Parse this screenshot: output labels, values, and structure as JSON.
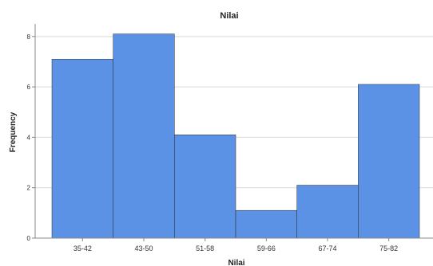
{
  "chart_data": {
    "type": "bar",
    "title": "Nilai",
    "xlabel": "Nilai",
    "ylabel": "Frequency",
    "categories": [
      "35-42",
      "43-50",
      "51-58",
      "59-66",
      "67-74",
      "75-82"
    ],
    "values": [
      7.1,
      8.1,
      4.1,
      1.1,
      2.1,
      6.1
    ],
    "yticks": [
      "0",
      "2",
      "4",
      "6",
      "8"
    ],
    "ylim": [
      0,
      8.5
    ],
    "grid": "horizontal",
    "bar_color": "#5b92e5",
    "bar_gap": "none"
  }
}
